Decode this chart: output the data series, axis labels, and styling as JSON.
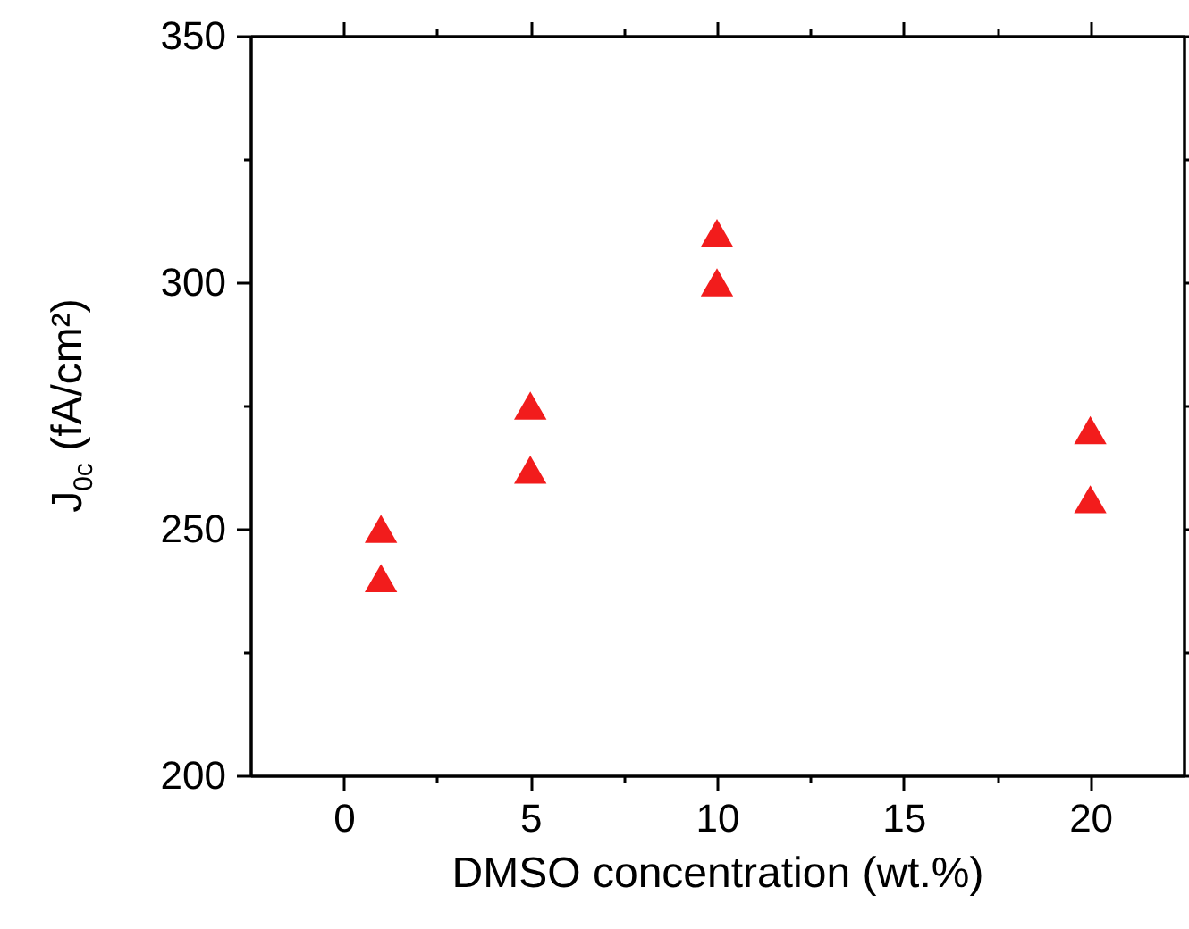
{
  "chart_data": {
    "type": "scatter",
    "xlabel": "DMSO concentration (wt.%)",
    "ylabel": "J$_{0c}$ (fA/cm²)",
    "x": [
      1,
      1,
      5,
      5,
      10,
      10,
      20,
      20
    ],
    "series": [
      {
        "color": "#f21c1c",
        "values": [
          250,
          240,
          275,
          262,
          310,
          300,
          270,
          256
        ]
      }
    ],
    "xlim": [
      -2.5,
      22.5
    ],
    "xticks": [
      0,
      {
        "value": 2.5,
        "label": null
      },
      5,
      {
        "value": 7.5,
        "label": null
      },
      10,
      {
        "value": 12.5,
        "label": null
      },
      15,
      {
        "value": 17.5,
        "label": null
      },
      20
    ],
    "ylim": [
      200,
      350
    ],
    "yticks": [
      200,
      {
        "value": 225,
        "label": null
      },
      250,
      {
        "value": 275,
        "label": null
      },
      300,
      {
        "value": 325,
        "label": null
      },
      350
    ],
    "marker": "triangle",
    "grid": false
  }
}
